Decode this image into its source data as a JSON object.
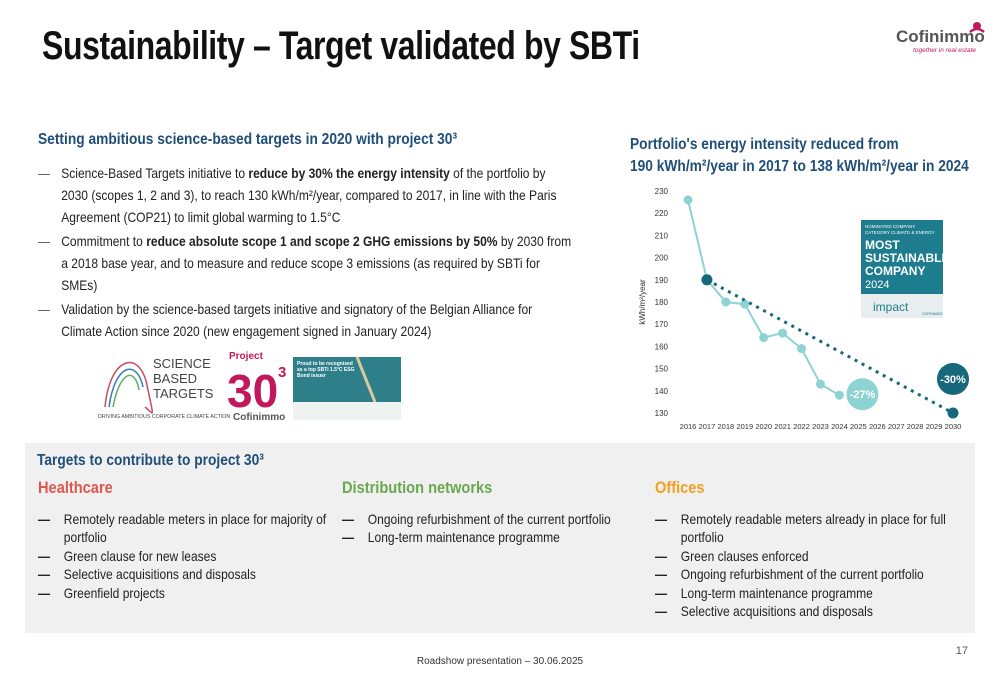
{
  "header": {
    "title": "Sustainability – Target validated by SBTi",
    "logo": {
      "name": "Cofinimmo",
      "tagline": "together in real estate"
    }
  },
  "left": {
    "heading": "Setting ambitious science-based targets in 2020 with project 30³",
    "bullets": [
      [
        {
          "text": "Science-Based Targets initiative to ",
          "bold": false
        },
        {
          "text": "reduce by 30% the energy intensity",
          "bold": true
        },
        {
          "text": " of the portfolio by 2030 (scopes 1, 2 and 3), to reach 130 kWh/m²/year, compared  to 2017, in line with the Paris Agreement (COP21) to limit global warming to 1.5°C",
          "bold": false
        }
      ],
      [
        {
          "text": "Commitment to ",
          "bold": false
        },
        {
          "text": "reduce absolute scope 1 and scope 2 GHG emissions by 50%",
          "bold": true
        },
        {
          "text": " by 2030 from a 2018 base year, and to measure and reduce scope 3 emissions (as required by SBTi for SMEs)",
          "bold": false
        }
      ],
      [
        {
          "text": "Validation by the science-based targets initiative and signatory of the Belgian Alliance for Climate Action since 2020 (new engagement signed in January 2024)",
          "bold": false
        }
      ]
    ],
    "logos": {
      "sbt": [
        "SCIENCE",
        "BASED",
        "TARGETS"
      ],
      "sbt_tagline": "DRIVING AMBITIOUS CORPORATE CLIMATE ACTION",
      "project": {
        "label": "Project",
        "number": "30",
        "sup": "3",
        "brand": "Cofinimmo"
      },
      "bond": "Proud to be recognised as a top SBTi 1.5°C ESG Bond issuer"
    }
  },
  "chart_data": {
    "type": "line",
    "title": [
      "Portfolio's energy intensity reduced from",
      "190 kWh/m²/year in 2017 to 138 kWh/m²/year in 2024"
    ],
    "ylabel": "kWh/m²/year",
    "x": [
      2016,
      2017,
      2018,
      2019,
      2020,
      2021,
      2022,
      2023,
      2024,
      2025,
      2026,
      2027,
      2028,
      2029,
      2030
    ],
    "xlim": [
      2016,
      2030
    ],
    "xticks": [
      2016,
      2017,
      2018,
      2019,
      2020,
      2021,
      2022,
      2023,
      2024,
      2025,
      2026,
      2027,
      2028,
      2029,
      2030
    ],
    "ylim": [
      130,
      230
    ],
    "yticks": [
      130,
      140,
      150,
      160,
      170,
      180,
      190,
      200,
      210,
      220,
      230
    ],
    "series": [
      {
        "color": "#8ed3d3",
        "values": [
          226,
          190,
          180,
          179,
          164,
          166,
          159,
          143,
          138,
          null,
          null,
          null,
          null,
          null,
          null
        ]
      },
      {
        "color": "#17687a",
        "style": "dotted",
        "x": [
          2017,
          2030
        ],
        "values": [
          190,
          130
        ]
      }
    ],
    "annotations": [
      "-27%",
      "-30%"
    ],
    "badge": [
      "NOMINATED COMPANY",
      "CATEGORY CLIMATE & ENERGY",
      "MOST",
      "SUSTAINABLE",
      "COMPANY",
      "2024",
      "impact",
      "COFINIMMO"
    ]
  },
  "targets": {
    "heading": "Targets to contribute to project 30³",
    "columns": [
      {
        "title": "Healthcare",
        "color": "#e0574f",
        "items": [
          "Remotely readable meters in place for majority of portfolio",
          "Green clause for new leases",
          "Selective acquisitions and disposals",
          "Greenfield projects"
        ]
      },
      {
        "title": "Distribution networks",
        "color": "#6aa84f",
        "items": [
          "Ongoing refurbishment of the current portfolio",
          "Long-term maintenance programme"
        ]
      },
      {
        "title": "Offices",
        "color": "#f0a020",
        "items": [
          "Remotely readable meters already in place for full portfolio",
          "Green clauses enforced",
          "Ongoing refurbishment of the current portfolio",
          "Long-term maintenance programme",
          "Selective acquisitions and disposals"
        ]
      }
    ]
  },
  "footer": {
    "text": "Roadshow presentation – 30.06.2025",
    "page": 17
  }
}
